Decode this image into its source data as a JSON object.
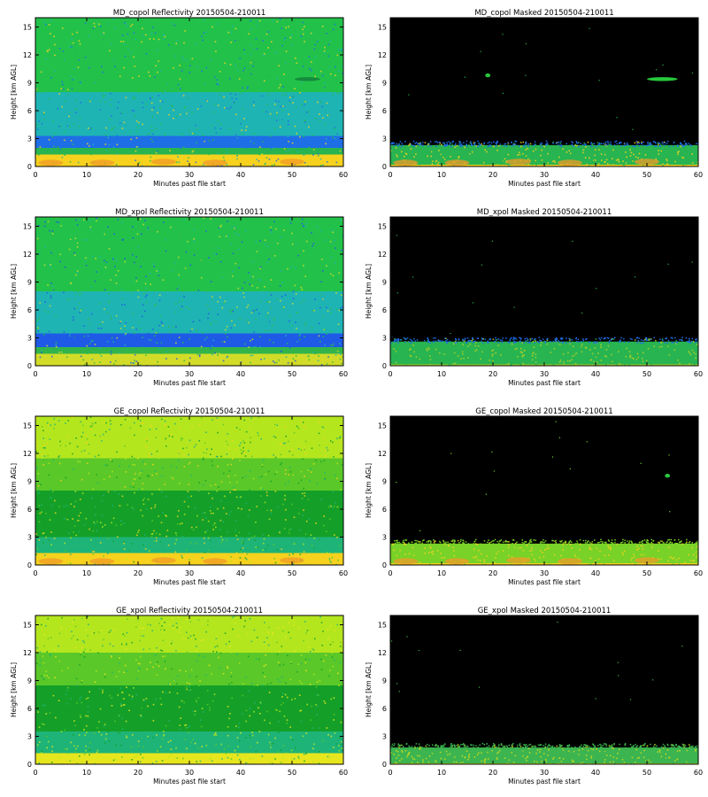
{
  "chart_data": [
    {
      "type": "heatmap",
      "title": "MD_copol Reflectivity 20150504-210011",
      "xlabel": "Minutes past file start",
      "ylabel": "Height [km AGL]",
      "xlim": [
        0,
        60
      ],
      "ylim": [
        0,
        16
      ],
      "xticks": [
        0,
        10,
        20,
        30,
        40,
        50,
        60
      ],
      "yticks": [
        0,
        3,
        6,
        9,
        12,
        15
      ],
      "masked": false,
      "colors": {
        "surface": "#f6d21e",
        "surface_hot": "#f09a28",
        "low": "#28b450",
        "mid": "#1e6ee6",
        "upper": "#1eb4b4",
        "top": "#22c24a"
      },
      "layers": [
        {
          "from_km": 0,
          "to_km": 1.3,
          "fill": "surface"
        },
        {
          "from_km": 1.3,
          "to_km": 2.0,
          "fill": "low"
        },
        {
          "from_km": 2.0,
          "to_km": 3.3,
          "fill": "mid"
        },
        {
          "from_km": 3.3,
          "to_km": 8.0,
          "fill": "upper"
        },
        {
          "from_km": 8.0,
          "to_km": 16,
          "fill": "top"
        }
      ],
      "features": [
        {
          "x_min": 53,
          "height_km": 9.4,
          "length_min": 5
        }
      ]
    },
    {
      "type": "heatmap",
      "title": "MD_copol Masked 20150504-210011",
      "xlabel": "Minutes past file start",
      "ylabel": "Height [km AGL]",
      "xlim": [
        0,
        60
      ],
      "ylim": [
        0,
        16
      ],
      "xticks": [
        0,
        10,
        20,
        30,
        40,
        50,
        60
      ],
      "yticks": [
        0,
        3,
        6,
        9,
        12,
        15
      ],
      "masked": true,
      "colors": {
        "surface": "#f6d21e",
        "surface_hot": "#f09a28",
        "low": "#28b450",
        "mid": "#1e6ee6",
        "background": "#000000"
      },
      "layers": [
        {
          "from_km": 0,
          "to_km": 1.2,
          "fill": "surface"
        },
        {
          "from_km": 1.2,
          "to_km": 2.3,
          "fill": "low"
        }
      ],
      "features": [
        {
          "x_min": 53,
          "height_km": 9.4,
          "length_min": 6
        },
        {
          "x_min": 19,
          "height_km": 9.8,
          "length_min": 1
        }
      ]
    },
    {
      "type": "heatmap",
      "title": "MD_xpol Reflectivity 20150504-210011",
      "xlabel": "Minutes past file start",
      "ylabel": "Height [km AGL]",
      "xlim": [
        0,
        60
      ],
      "ylim": [
        0,
        16
      ],
      "xticks": [
        0,
        10,
        20,
        30,
        40,
        50,
        60
      ],
      "yticks": [
        0,
        3,
        6,
        9,
        12,
        15
      ],
      "masked": false,
      "colors": {
        "surface": "#d2dc28",
        "low": "#32b44b",
        "mid": "#1e5ae6",
        "upper": "#1eb4b4",
        "top": "#22c24a"
      },
      "layers": [
        {
          "from_km": 0,
          "to_km": 1.3,
          "fill": "surface"
        },
        {
          "from_km": 1.3,
          "to_km": 2.0,
          "fill": "low"
        },
        {
          "from_km": 2.0,
          "to_km": 3.5,
          "fill": "mid"
        },
        {
          "from_km": 3.5,
          "to_km": 8.0,
          "fill": "upper"
        },
        {
          "from_km": 8.0,
          "to_km": 16,
          "fill": "top"
        }
      ],
      "features": []
    },
    {
      "type": "heatmap",
      "title": "MD_xpol Masked 20150504-210011",
      "xlabel": "Minutes past file start",
      "ylabel": "Height [km AGL]",
      "xlim": [
        0,
        60
      ],
      "ylim": [
        0,
        16
      ],
      "xticks": [
        0,
        10,
        20,
        30,
        40,
        50,
        60
      ],
      "yticks": [
        0,
        3,
        6,
        9,
        12,
        15
      ],
      "masked": true,
      "colors": {
        "surface": "#b4d228",
        "low": "#28b450",
        "mid": "#1e6ee6",
        "background": "#000000"
      },
      "layers": [
        {
          "from_km": 0,
          "to_km": 1.0,
          "fill": "surface"
        },
        {
          "from_km": 1.0,
          "to_km": 2.6,
          "fill": "low"
        }
      ],
      "features": []
    },
    {
      "type": "heatmap",
      "title": "GE_copol Reflectivity 20150504-210011",
      "xlabel": "Minutes past file start",
      "ylabel": "Height [km AGL]",
      "xlim": [
        0,
        60
      ],
      "ylim": [
        0,
        16
      ],
      "xticks": [
        0,
        10,
        20,
        30,
        40,
        50,
        60
      ],
      "yticks": [
        0,
        3,
        6,
        9,
        12,
        15
      ],
      "masked": false,
      "colors": {
        "surface": "#f6d21e",
        "surface_hot": "#f09a28",
        "low": "#1eb478",
        "mid": "#14a028",
        "upper": "#5ac828",
        "top": "#b4e61e"
      },
      "layers": [
        {
          "from_km": 0,
          "to_km": 1.3,
          "fill": "surface"
        },
        {
          "from_km": 1.3,
          "to_km": 3.0,
          "fill": "low"
        },
        {
          "from_km": 3.0,
          "to_km": 8.0,
          "fill": "mid"
        },
        {
          "from_km": 8.0,
          "to_km": 11.5,
          "fill": "upper"
        },
        {
          "from_km": 11.5,
          "to_km": 16,
          "fill": "top"
        }
      ],
      "features": []
    },
    {
      "type": "heatmap",
      "title": "GE_copol Masked 20150504-210011",
      "xlabel": "Minutes past file start",
      "ylabel": "Height [km AGL]",
      "xlim": [
        0,
        60
      ],
      "ylim": [
        0,
        16
      ],
      "xticks": [
        0,
        10,
        20,
        30,
        40,
        50,
        60
      ],
      "yticks": [
        0,
        3,
        6,
        9,
        12,
        15
      ],
      "masked": true,
      "colors": {
        "surface": "#f6d21e",
        "surface_hot": "#f09a28",
        "low": "#78d228",
        "background": "#000000"
      },
      "layers": [
        {
          "from_km": 0,
          "to_km": 1.3,
          "fill": "surface"
        },
        {
          "from_km": 1.3,
          "to_km": 2.3,
          "fill": "low"
        }
      ],
      "features": [
        {
          "x_min": 54,
          "height_km": 9.6,
          "length_min": 1
        }
      ]
    },
    {
      "type": "heatmap",
      "title": "GE_xpol Reflectivity 20150504-210011",
      "xlabel": "Minutes past file start",
      "ylabel": "Height [km AGL]",
      "xlim": [
        0,
        60
      ],
      "ylim": [
        0,
        16
      ],
      "xticks": [
        0,
        10,
        20,
        30,
        40,
        50,
        60
      ],
      "yticks": [
        0,
        3,
        6,
        9,
        12,
        15
      ],
      "masked": false,
      "colors": {
        "surface": "#e6e61e",
        "low": "#1eb478",
        "mid": "#14a028",
        "upper": "#5ac828",
        "top": "#b4e61e"
      },
      "layers": [
        {
          "from_km": 0,
          "to_km": 1.2,
          "fill": "surface"
        },
        {
          "from_km": 1.2,
          "to_km": 3.5,
          "fill": "low"
        },
        {
          "from_km": 3.5,
          "to_km": 8.5,
          "fill": "mid"
        },
        {
          "from_km": 8.5,
          "to_km": 12.0,
          "fill": "upper"
        },
        {
          "from_km": 12.0,
          "to_km": 16,
          "fill": "top"
        }
      ],
      "features": []
    },
    {
      "type": "heatmap",
      "title": "GE_xpol Masked 20150504-210011",
      "xlabel": "Minutes past file start",
      "ylabel": "Height [km AGL]",
      "xlim": [
        0,
        60
      ],
      "ylim": [
        0,
        16
      ],
      "xticks": [
        0,
        10,
        20,
        30,
        40,
        50,
        60
      ],
      "yticks": [
        0,
        3,
        6,
        9,
        12,
        15
      ],
      "masked": true,
      "colors": {
        "surface": "#c8dc1e",
        "low": "#3cb450",
        "background": "#000000"
      },
      "layers": [
        {
          "from_km": 0,
          "to_km": 1.0,
          "fill": "surface"
        },
        {
          "from_km": 1.0,
          "to_km": 1.8,
          "fill": "low"
        }
      ],
      "features": []
    }
  ]
}
